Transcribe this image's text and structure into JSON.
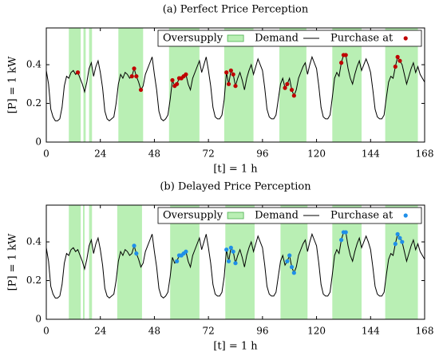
{
  "chart_data": [
    {
      "type": "line",
      "title": "(a) Perfect Price Perception",
      "xlabel": "[t] = 1 h",
      "ylabel": "[P] = 1 kW",
      "xlim": [
        0,
        168
      ],
      "xticks": [
        0,
        24,
        48,
        72,
        96,
        120,
        144,
        168
      ],
      "ylim": [
        0,
        0.59
      ],
      "yticks": [
        0,
        0.2,
        0.4
      ],
      "grid": false,
      "legend": "upper right",
      "series": [
        {
          "name": "Oversupply",
          "type": "band",
          "color": "#b9efb4",
          "intervals": [
            [
              10,
              15.3
            ],
            [
              16.5,
              17.5
            ],
            [
              19,
              20.3
            ],
            [
              32,
              43
            ],
            [
              54.5,
              68
            ],
            [
              79,
              92
            ],
            [
              103.5,
              115.5
            ],
            [
              127,
              140
            ],
            [
              150.5,
              165
            ]
          ]
        },
        {
          "name": "Demand",
          "type": "line",
          "color": "#000000",
          "x": [
            0,
            1,
            2,
            3,
            4,
            5,
            6,
            7,
            8,
            9,
            10,
            11,
            12,
            13,
            14,
            15,
            16,
            17,
            18,
            19,
            20,
            21,
            22,
            23,
            24,
            25,
            26,
            27,
            28,
            29,
            30,
            31,
            32,
            33,
            34,
            35,
            36,
            37,
            38,
            39,
            40,
            41,
            42,
            43,
            44,
            45,
            46,
            47,
            48,
            49,
            50,
            51,
            52,
            53,
            54,
            55,
            56,
            57,
            58,
            59,
            60,
            61,
            62,
            63,
            64,
            65,
            66,
            67,
            68,
            69,
            70,
            71,
            72,
            73,
            74,
            75,
            76,
            77,
            78,
            79,
            80,
            81,
            82,
            83,
            84,
            85,
            86,
            87,
            88,
            89,
            90,
            91,
            92,
            93,
            94,
            95,
            96,
            97,
            98,
            99,
            100,
            101,
            102,
            103,
            104,
            105,
            106,
            107,
            108,
            109,
            110,
            111,
            112,
            113,
            114,
            115,
            116,
            117,
            118,
            119,
            120,
            121,
            122,
            123,
            124,
            125,
            126,
            127,
            128,
            129,
            130,
            131,
            132,
            133,
            134,
            135,
            136,
            137,
            138,
            139,
            140,
            141,
            142,
            143,
            144,
            145,
            146,
            147,
            148,
            149,
            150,
            151,
            152,
            153,
            154,
            155,
            156,
            157,
            158,
            159,
            160,
            161,
            162,
            163,
            164,
            165,
            166,
            167,
            168
          ],
          "values": [
            0.37,
            0.3,
            0.17,
            0.13,
            0.11,
            0.11,
            0.12,
            0.18,
            0.29,
            0.34,
            0.33,
            0.36,
            0.37,
            0.35,
            0.36,
            0.33,
            0.3,
            0.26,
            0.31,
            0.38,
            0.41,
            0.34,
            0.39,
            0.42,
            0.36,
            0.28,
            0.16,
            0.12,
            0.11,
            0.12,
            0.13,
            0.2,
            0.3,
            0.35,
            0.33,
            0.36,
            0.35,
            0.33,
            0.34,
            0.38,
            0.34,
            0.31,
            0.27,
            0.29,
            0.35,
            0.38,
            0.41,
            0.44,
            0.35,
            0.27,
            0.16,
            0.12,
            0.11,
            0.12,
            0.14,
            0.22,
            0.32,
            0.29,
            0.3,
            0.33,
            0.33,
            0.34,
            0.35,
            0.3,
            0.27,
            0.33,
            0.36,
            0.39,
            0.42,
            0.36,
            0.4,
            0.44,
            0.37,
            0.29,
            0.18,
            0.13,
            0.12,
            0.12,
            0.14,
            0.22,
            0.36,
            0.3,
            0.37,
            0.35,
            0.29,
            0.33,
            0.36,
            0.32,
            0.27,
            0.33,
            0.37,
            0.4,
            0.35,
            0.39,
            0.43,
            0.4,
            0.37,
            0.28,
            0.17,
            0.13,
            0.12,
            0.12,
            0.14,
            0.22,
            0.3,
            0.33,
            0.28,
            0.3,
            0.33,
            0.27,
            0.24,
            0.27,
            0.33,
            0.36,
            0.39,
            0.41,
            0.35,
            0.4,
            0.44,
            0.41,
            0.38,
            0.29,
            0.18,
            0.13,
            0.12,
            0.12,
            0.14,
            0.23,
            0.33,
            0.36,
            0.34,
            0.41,
            0.45,
            0.45,
            0.38,
            0.33,
            0.3,
            0.35,
            0.39,
            0.42,
            0.37,
            0.4,
            0.43,
            0.4,
            0.36,
            0.27,
            0.17,
            0.13,
            0.12,
            0.12,
            0.14,
            0.23,
            0.31,
            0.34,
            0.33,
            0.39,
            0.44,
            0.42,
            0.4,
            0.35,
            0.3,
            0.34,
            0.38,
            0.41,
            0.36,
            0.39,
            0.35,
            0.33,
            0.31
          ]
        },
        {
          "name": "Purchase at",
          "type": "scatter",
          "color": "#c00000",
          "x": [
            14,
            38,
            39,
            40,
            42,
            56,
            57,
            58,
            59,
            60,
            61,
            62,
            80,
            81,
            82,
            83,
            84,
            106,
            107,
            109,
            110,
            131,
            132,
            133,
            155,
            156,
            157
          ],
          "values": [
            0.36,
            0.34,
            0.38,
            0.34,
            0.27,
            0.32,
            0.29,
            0.3,
            0.33,
            0.33,
            0.34,
            0.35,
            0.36,
            0.3,
            0.37,
            0.35,
            0.29,
            0.28,
            0.3,
            0.27,
            0.24,
            0.41,
            0.45,
            0.45,
            0.39,
            0.44,
            0.42
          ]
        }
      ]
    },
    {
      "type": "line",
      "title": "(b) Delayed Price Perception",
      "xlabel": "[t] = 1 h",
      "ylabel": "[P] = 1 kW",
      "xlim": [
        0,
        168
      ],
      "xticks": [
        0,
        24,
        48,
        72,
        96,
        120,
        144,
        168
      ],
      "ylim": [
        0,
        0.59
      ],
      "yticks": [
        0,
        0.2,
        0.4
      ],
      "grid": false,
      "legend": "upper right",
      "series": [
        {
          "name": "Oversupply",
          "type": "band",
          "color": "#b9efb4",
          "intervals": [
            [
              10,
              15.3
            ],
            [
              16.3,
              17
            ],
            [
              19,
              20.3
            ],
            [
              31.5,
              42.5
            ],
            [
              55,
              68
            ],
            [
              79.5,
              92.5
            ],
            [
              104,
              116
            ],
            [
              127,
              140
            ],
            [
              150.5,
              165
            ]
          ]
        },
        {
          "name": "Demand",
          "type": "line",
          "color": "#000000",
          "x": [
            0,
            1,
            2,
            3,
            4,
            5,
            6,
            7,
            8,
            9,
            10,
            11,
            12,
            13,
            14,
            15,
            16,
            17,
            18,
            19,
            20,
            21,
            22,
            23,
            24,
            25,
            26,
            27,
            28,
            29,
            30,
            31,
            32,
            33,
            34,
            35,
            36,
            37,
            38,
            39,
            40,
            41,
            42,
            43,
            44,
            45,
            46,
            47,
            48,
            49,
            50,
            51,
            52,
            53,
            54,
            55,
            56,
            57,
            58,
            59,
            60,
            61,
            62,
            63,
            64,
            65,
            66,
            67,
            68,
            69,
            70,
            71,
            72,
            73,
            74,
            75,
            76,
            77,
            78,
            79,
            80,
            81,
            82,
            83,
            84,
            85,
            86,
            87,
            88,
            89,
            90,
            91,
            92,
            93,
            94,
            95,
            96,
            97,
            98,
            99,
            100,
            101,
            102,
            103,
            104,
            105,
            106,
            107,
            108,
            109,
            110,
            111,
            112,
            113,
            114,
            115,
            116,
            117,
            118,
            119,
            120,
            121,
            122,
            123,
            124,
            125,
            126,
            127,
            128,
            129,
            130,
            131,
            132,
            133,
            134,
            135,
            136,
            137,
            138,
            139,
            140,
            141,
            142,
            143,
            144,
            145,
            146,
            147,
            148,
            149,
            150,
            151,
            152,
            153,
            154,
            155,
            156,
            157,
            158,
            159,
            160,
            161,
            162,
            163,
            164,
            165,
            166,
            167,
            168
          ],
          "values": [
            0.37,
            0.3,
            0.17,
            0.13,
            0.11,
            0.11,
            0.12,
            0.18,
            0.29,
            0.34,
            0.33,
            0.36,
            0.37,
            0.35,
            0.36,
            0.33,
            0.3,
            0.26,
            0.31,
            0.38,
            0.41,
            0.34,
            0.39,
            0.42,
            0.36,
            0.28,
            0.16,
            0.12,
            0.11,
            0.12,
            0.13,
            0.2,
            0.3,
            0.35,
            0.33,
            0.36,
            0.35,
            0.33,
            0.34,
            0.38,
            0.34,
            0.31,
            0.27,
            0.29,
            0.35,
            0.38,
            0.41,
            0.44,
            0.35,
            0.27,
            0.16,
            0.12,
            0.11,
            0.12,
            0.14,
            0.22,
            0.32,
            0.29,
            0.3,
            0.33,
            0.33,
            0.34,
            0.35,
            0.3,
            0.27,
            0.33,
            0.36,
            0.39,
            0.42,
            0.36,
            0.4,
            0.44,
            0.37,
            0.29,
            0.18,
            0.13,
            0.12,
            0.12,
            0.14,
            0.22,
            0.36,
            0.3,
            0.37,
            0.35,
            0.29,
            0.33,
            0.36,
            0.32,
            0.27,
            0.33,
            0.37,
            0.4,
            0.35,
            0.39,
            0.43,
            0.4,
            0.37,
            0.28,
            0.17,
            0.13,
            0.12,
            0.12,
            0.14,
            0.22,
            0.3,
            0.33,
            0.28,
            0.3,
            0.33,
            0.27,
            0.24,
            0.27,
            0.33,
            0.36,
            0.39,
            0.41,
            0.35,
            0.4,
            0.44,
            0.41,
            0.38,
            0.29,
            0.18,
            0.13,
            0.12,
            0.12,
            0.14,
            0.23,
            0.33,
            0.36,
            0.34,
            0.41,
            0.45,
            0.45,
            0.38,
            0.33,
            0.3,
            0.35,
            0.39,
            0.42,
            0.37,
            0.4,
            0.43,
            0.4,
            0.36,
            0.27,
            0.17,
            0.13,
            0.12,
            0.12,
            0.14,
            0.23,
            0.31,
            0.34,
            0.33,
            0.39,
            0.44,
            0.42,
            0.4,
            0.35,
            0.3,
            0.34,
            0.38,
            0.41,
            0.36,
            0.39,
            0.35,
            0.33,
            0.31
          ]
        },
        {
          "name": "Purchase at",
          "type": "scatter",
          "color": "#1f8fe8",
          "x": [
            39,
            40,
            58,
            59,
            60,
            61,
            62,
            80,
            81,
            82,
            83,
            84,
            107,
            108,
            109,
            110,
            131,
            132,
            133,
            155,
            156,
            157,
            158
          ],
          "values": [
            0.38,
            0.34,
            0.3,
            0.33,
            0.33,
            0.34,
            0.35,
            0.36,
            0.3,
            0.37,
            0.35,
            0.29,
            0.3,
            0.33,
            0.27,
            0.24,
            0.41,
            0.45,
            0.45,
            0.39,
            0.44,
            0.42,
            0.4
          ]
        }
      ]
    }
  ]
}
